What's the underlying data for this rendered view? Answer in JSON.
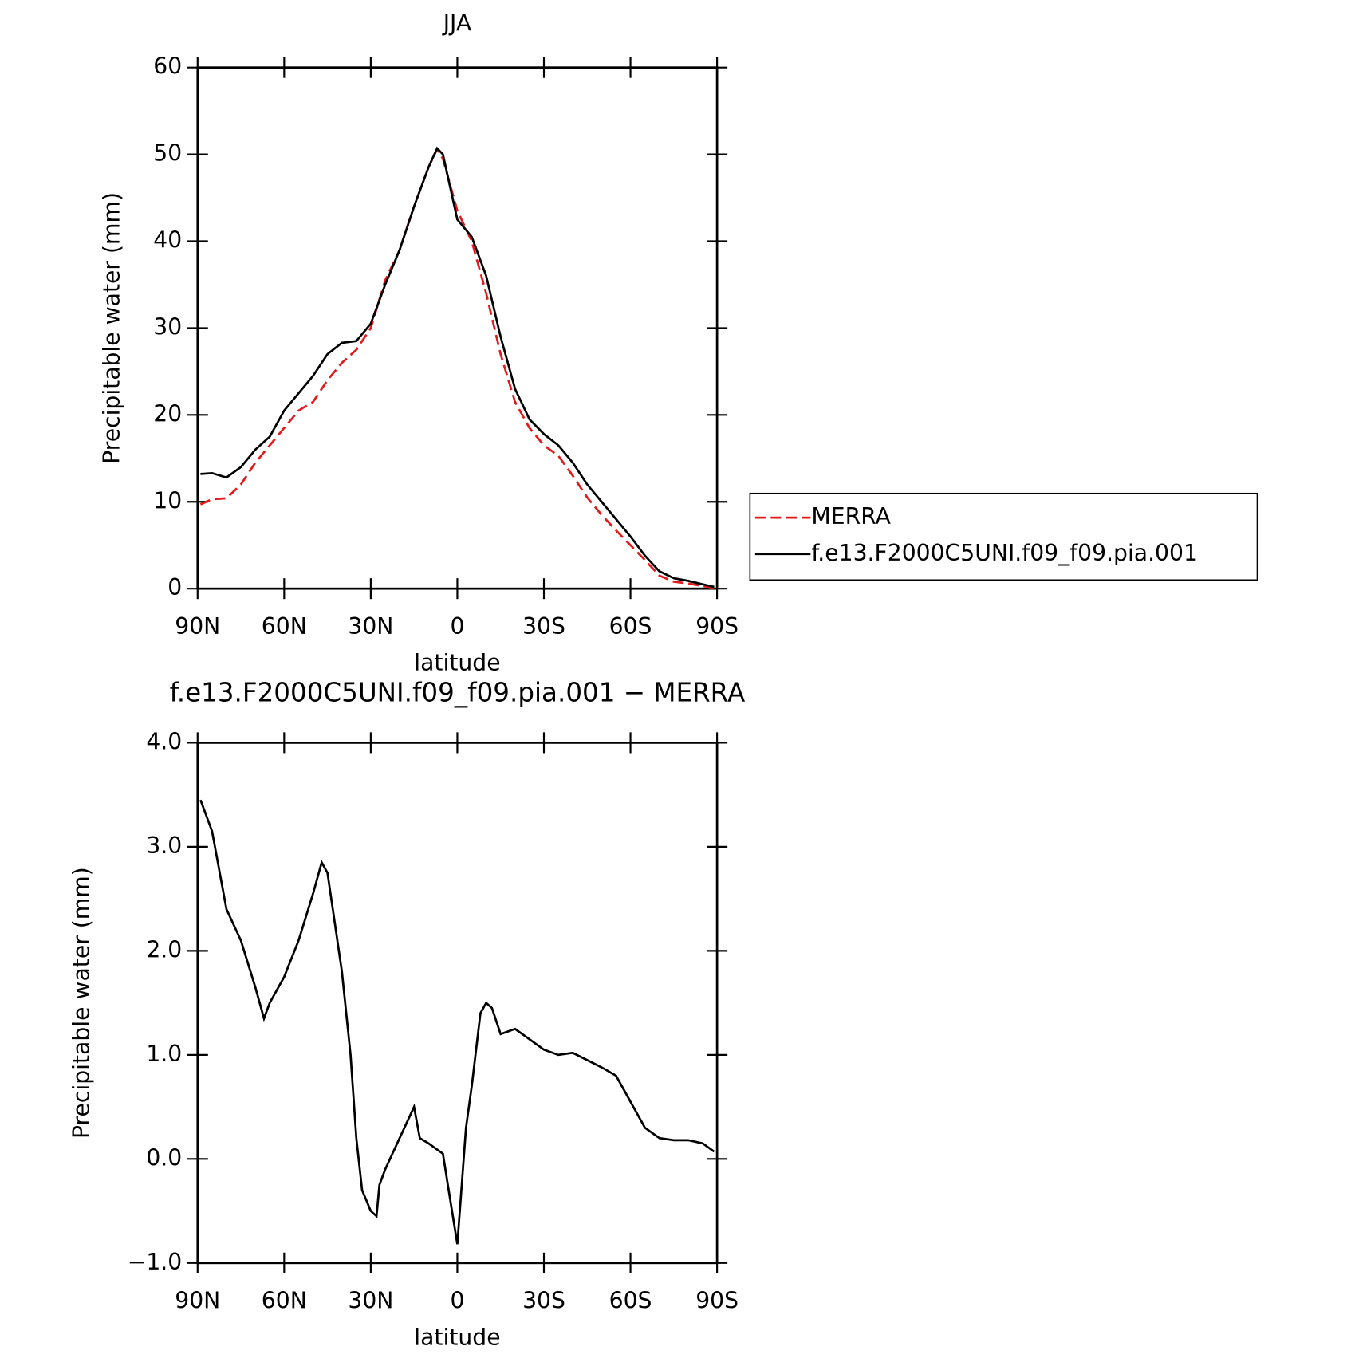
{
  "chart_data": [
    {
      "type": "line",
      "title": "JJA",
      "xlabel": "latitude",
      "ylabel": "Precipitable water (mm)",
      "xlim": [
        90,
        -90
      ],
      "xticks": [
        {
          "value": 90,
          "label": "90N"
        },
        {
          "value": 60,
          "label": "60N"
        },
        {
          "value": 30,
          "label": "30N"
        },
        0,
        {
          "value": -30,
          "label": "30S"
        },
        {
          "value": -60,
          "label": "60S"
        },
        {
          "value": -90,
          "label": "90S"
        }
      ],
      "ylim": [
        0,
        60
      ],
      "yticks": [
        0,
        10,
        20,
        30,
        40,
        50,
        60
      ],
      "x": [
        89,
        85,
        80,
        75,
        70,
        65,
        60,
        55,
        50,
        45,
        40,
        35,
        30,
        25,
        20,
        15,
        10,
        7,
        5,
        0,
        -5,
        -10,
        -15,
        -20,
        -25,
        -30,
        -35,
        -40,
        -45,
        -50,
        -55,
        -60,
        -65,
        -70,
        -75,
        -80,
        -85,
        -89
      ],
      "series": [
        {
          "name": "MERRA",
          "color": "#e31a1c",
          "dash": true,
          "values": [
            9.7,
            10.3,
            10.4,
            12,
            14.5,
            16.5,
            18.5,
            20.5,
            21.5,
            24,
            26,
            27.5,
            30,
            35.5,
            39,
            44,
            48.5,
            50.6,
            49.5,
            43.5,
            40,
            34,
            27,
            21.5,
            18.5,
            16.5,
            15.3,
            13,
            10.5,
            8.5,
            6.7,
            5,
            3.3,
            1.5,
            0.8,
            0.6,
            0.3,
            0.1
          ]
        },
        {
          "name": "f.e13.F2000C5UNI.f09_f09.pia.001",
          "color": "#000000",
          "dash": false,
          "values": [
            13.2,
            13.3,
            12.8,
            14,
            16,
            17.5,
            20.5,
            22.5,
            24.5,
            27,
            28.3,
            28.5,
            30.5,
            35,
            39,
            44,
            48.5,
            50.7,
            50,
            42.5,
            40.5,
            36,
            29,
            23,
            19.5,
            17.8,
            16.5,
            14.5,
            12,
            10,
            8,
            6,
            3.8,
            2,
            1.2,
            0.9,
            0.5,
            0.2
          ]
        }
      ]
    },
    {
      "type": "line",
      "title": "f.e13.F2000C5UNI.f09_f09.pia.001 − MERRA",
      "xlabel": "latitude",
      "ylabel": "Precipitable water (mm)",
      "xlim": [
        90,
        -90
      ],
      "xticks": [
        {
          "value": 90,
          "label": "90N"
        },
        {
          "value": 60,
          "label": "60N"
        },
        {
          "value": 30,
          "label": "30N"
        },
        0,
        {
          "value": -30,
          "label": "30S"
        },
        {
          "value": -60,
          "label": "60S"
        },
        {
          "value": -90,
          "label": "90S"
        }
      ],
      "ylim": [
        -1,
        4
      ],
      "yticks": [
        {
          "value": -1,
          "label": "−1.0"
        },
        {
          "value": 0,
          "label": "0.0"
        },
        {
          "value": 1,
          "label": "1.0"
        },
        {
          "value": 2,
          "label": "2.0"
        },
        {
          "value": 3,
          "label": "3.0"
        },
        {
          "value": 4,
          "label": "4.0"
        }
      ],
      "x": [
        89,
        85,
        80,
        75,
        70,
        67,
        65,
        60,
        55,
        50,
        47,
        45,
        40,
        37,
        35,
        33,
        30,
        28,
        27,
        25,
        20,
        15,
        13,
        10,
        5,
        3,
        0,
        -3,
        -5,
        -8,
        -10,
        -12,
        -15,
        -20,
        -25,
        -30,
        -35,
        -40,
        -45,
        -50,
        -55,
        -60,
        -65,
        -70,
        -75,
        -80,
        -85,
        -89
      ],
      "series": [
        {
          "color": "#000000",
          "dash": false,
          "values": [
            3.45,
            3.15,
            2.4,
            2.1,
            1.65,
            1.35,
            1.5,
            1.75,
            2.1,
            2.55,
            2.85,
            2.75,
            1.8,
            1.0,
            0.2,
            -0.3,
            -0.5,
            -0.55,
            -0.25,
            -0.1,
            0.2,
            0.5,
            0.2,
            0.15,
            0.05,
            -0.3,
            -0.82,
            0.3,
            0.7,
            1.4,
            1.5,
            1.45,
            1.2,
            1.25,
            1.15,
            1.05,
            1.0,
            1.02,
            0.95,
            0.88,
            0.8,
            0.55,
            0.3,
            0.2,
            0.18,
            0.18,
            0.15,
            0.07
          ]
        }
      ]
    }
  ]
}
